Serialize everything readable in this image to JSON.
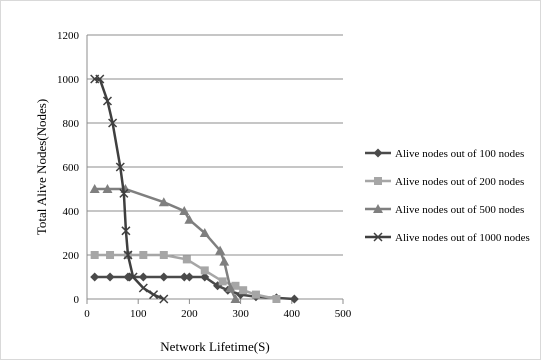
{
  "chart_data": {
    "type": "line",
    "xlabel": "Network Lifetime(S)",
    "ylabel": "Total Alive Nodes(Nodes)",
    "xlim": [
      0,
      500
    ],
    "ylim": [
      0,
      1200
    ],
    "xticks": [
      0,
      100,
      200,
      300,
      400,
      500
    ],
    "yticks": [
      0,
      200,
      400,
      600,
      800,
      1000,
      1200
    ],
    "grid": "horizontal",
    "legend_position": "right",
    "series": [
      {
        "name": "Alive nodes out of 100 nodes",
        "color": "#4a4a4a",
        "marker": "diamond",
        "points": [
          [
            15,
            100
          ],
          [
            45,
            100
          ],
          [
            80,
            100
          ],
          [
            110,
            100
          ],
          [
            150,
            100
          ],
          [
            190,
            100
          ],
          [
            200,
            100
          ],
          [
            230,
            100
          ],
          [
            255,
            60
          ],
          [
            275,
            40
          ],
          [
            300,
            20
          ],
          [
            330,
            10
          ],
          [
            370,
            5
          ],
          [
            405,
            0
          ]
        ]
      },
      {
        "name": "Alive nodes out of 200 nodes",
        "color": "#a6a6a6",
        "marker": "square",
        "points": [
          [
            15,
            200
          ],
          [
            45,
            200
          ],
          [
            80,
            200
          ],
          [
            110,
            200
          ],
          [
            150,
            200
          ],
          [
            195,
            180
          ],
          [
            230,
            130
          ],
          [
            265,
            80
          ],
          [
            290,
            60
          ],
          [
            305,
            40
          ],
          [
            330,
            20
          ],
          [
            370,
            0
          ]
        ]
      },
      {
        "name": "Alive nodes out of 500 nodes",
        "color": "#7f7f7f",
        "marker": "triangle",
        "points": [
          [
            15,
            500
          ],
          [
            40,
            500
          ],
          [
            75,
            500
          ],
          [
            150,
            440
          ],
          [
            190,
            400
          ],
          [
            200,
            360
          ],
          [
            230,
            300
          ],
          [
            260,
            220
          ],
          [
            268,
            170
          ],
          [
            280,
            50
          ],
          [
            290,
            0
          ]
        ]
      },
      {
        "name": "Alive nodes out of 1000 nodes",
        "color": "#3f3f3f",
        "marker": "x",
        "points": [
          [
            15,
            1000
          ],
          [
            25,
            1000
          ],
          [
            40,
            900
          ],
          [
            50,
            800
          ],
          [
            65,
            600
          ],
          [
            72,
            480
          ],
          [
            76,
            310
          ],
          [
            80,
            200
          ],
          [
            90,
            100
          ],
          [
            110,
            50
          ],
          [
            130,
            20
          ],
          [
            150,
            0
          ]
        ]
      }
    ]
  }
}
